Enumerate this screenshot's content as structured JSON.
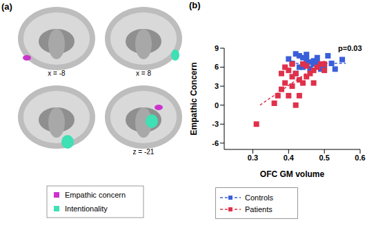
{
  "panel_a": {
    "label": "(a)",
    "slice_labels": [
      "x = -8",
      "x = 8",
      null,
      "z = -21"
    ],
    "legend": [
      {
        "name": "Empathic concern",
        "color": "#cc33cc"
      },
      {
        "name": "Intentionality",
        "color": "#3ee0b4"
      }
    ]
  },
  "chart_data": {
    "type": "scatter",
    "title": "(b)",
    "xlabel": "OFC GM volume",
    "ylabel": "Empathic Concern",
    "xlim": [
      0.22,
      0.6
    ],
    "xticks": [
      0.3,
      0.4,
      0.5,
      0.6
    ],
    "ylim": [
      -7,
      9
    ],
    "yticks": [
      -6,
      -3,
      0,
      3,
      6,
      9
    ],
    "annotations": [
      "p=0.03"
    ],
    "series": [
      {
        "name": "Controls",
        "color": "#3a5fd9",
        "marker": "square",
        "line_style": "dashed",
        "x": [
          0.41,
          0.42,
          0.43,
          0.43,
          0.44,
          0.44,
          0.45,
          0.45,
          0.46,
          0.46,
          0.47,
          0.47,
          0.48,
          0.49,
          0.5,
          0.51,
          0.52,
          0.53,
          0.55,
          0.44,
          0.42,
          0.45,
          0.48,
          0.4
        ],
        "values": [
          6.6,
          8.1,
          7.8,
          6.0,
          7.5,
          6.5,
          8.0,
          7.2,
          6.8,
          5.8,
          7.0,
          6.5,
          6.7,
          5.7,
          6.3,
          7.8,
          6.6,
          5.7,
          7.2,
          6.0,
          5.0,
          6.5,
          7.5,
          7.3
        ],
        "fit": {
          "x": [
            0.42,
            0.56
          ],
          "values": [
            6.6,
            6.6
          ]
        }
      },
      {
        "name": "Patients",
        "color": "#e0304a",
        "marker": "square",
        "line_style": "dashed",
        "x": [
          0.31,
          0.36,
          0.37,
          0.38,
          0.38,
          0.39,
          0.39,
          0.4,
          0.4,
          0.41,
          0.41,
          0.41,
          0.42,
          0.42,
          0.43,
          0.43,
          0.44,
          0.44,
          0.45,
          0.45,
          0.46,
          0.47,
          0.47,
          0.48,
          0.49,
          0.5,
          0.5
        ],
        "values": [
          -3.0,
          0.3,
          1.5,
          2.5,
          5.0,
          6.0,
          3.5,
          1.5,
          5.5,
          4.5,
          3.0,
          6.5,
          0.0,
          5.0,
          4.0,
          1.5,
          6.5,
          3.5,
          4.5,
          6.2,
          5.0,
          5.5,
          3.5,
          6.0,
          6.5,
          6.5,
          5.5
        ],
        "fit": {
          "x": [
            0.32,
            0.5
          ],
          "values": [
            0.0,
            7.0
          ]
        }
      }
    ]
  }
}
